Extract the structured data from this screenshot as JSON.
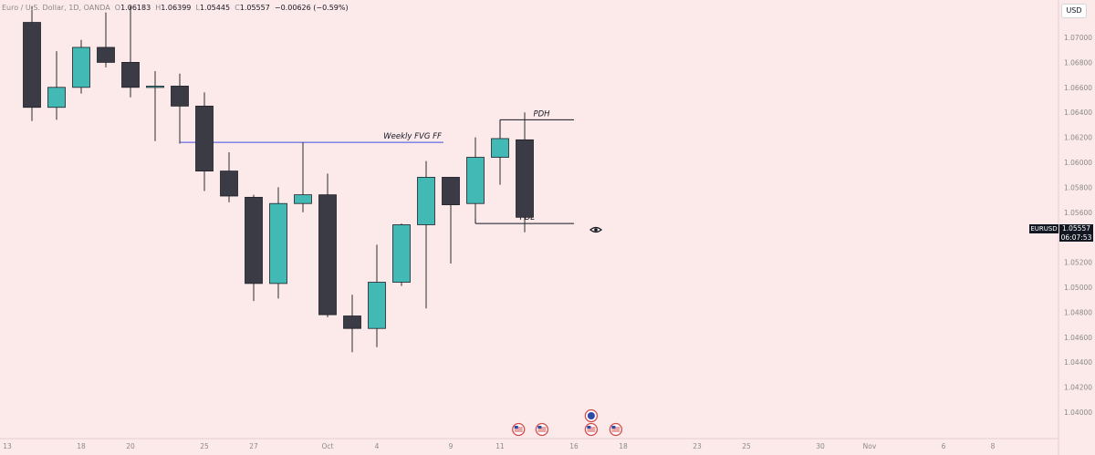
{
  "legend": {
    "title": "Euro / U.S. Dollar, 1D, OANDA",
    "open_label": "O",
    "open": "1.06183",
    "high_label": "H",
    "high": "1.06399",
    "low_label": "L",
    "low": "1.05445",
    "close_label": "C",
    "close": "1.05557",
    "change": "−0.00626 (−0.59%)"
  },
  "currency_button": "USD",
  "symbol_tag": "EURUSD",
  "price_tag": {
    "price": "1.05557",
    "countdown": "06:07:53"
  },
  "colors": {
    "background": "#fce9ea",
    "bull": "#42b9b5",
    "bear": "#3a3b44",
    "wick": "#2a2a2a",
    "fvg_line": "#3d52e0",
    "level_line": "#131722",
    "axis_text": "#8a8a8a"
  },
  "icons": {
    "event_marker": "us-flag-icon",
    "eye": "eye-icon"
  },
  "chart_data": {
    "type": "candlestick",
    "instrument": "EURUSD",
    "timeframe": "1D",
    "ylim": [
      1.04,
      1.072
    ],
    "y_ticks": [
      "1.07000",
      "1.06800",
      "1.06600",
      "1.06400",
      "1.06200",
      "1.06000",
      "1.05800",
      "1.05600",
      "1.05400",
      "1.05200",
      "1.05000",
      "1.04800",
      "1.04600",
      "1.04400",
      "1.04200",
      "1.04000"
    ],
    "x_ticks": [
      {
        "label": "13",
        "i": 0
      },
      {
        "label": "18",
        "i": 3
      },
      {
        "label": "20",
        "i": 5
      },
      {
        "label": "25",
        "i": 8
      },
      {
        "label": "27",
        "i": 10
      },
      {
        "label": "Oct",
        "i": 13
      },
      {
        "label": "4",
        "i": 15
      },
      {
        "label": "9",
        "i": 18
      },
      {
        "label": "11",
        "i": 20
      },
      {
        "label": "16",
        "i": 23
      },
      {
        "label": "18",
        "i": 25
      },
      {
        "label": "23",
        "i": 28
      },
      {
        "label": "25",
        "i": 30
      },
      {
        "label": "30",
        "i": 33
      },
      {
        "label": "Nov",
        "i": 35
      },
      {
        "label": "6",
        "i": 38
      },
      {
        "label": "8",
        "i": 40
      }
    ],
    "candles": [
      {
        "i": 1,
        "o": 1.0712,
        "h": 1.0725,
        "l": 1.0633,
        "c": 1.0644
      },
      {
        "i": 2,
        "o": 1.0644,
        "h": 1.0689,
        "l": 1.0634,
        "c": 1.066
      },
      {
        "i": 3,
        "o": 1.066,
        "h": 1.0698,
        "l": 1.0655,
        "c": 1.0692
      },
      {
        "i": 4,
        "o": 1.0692,
        "h": 1.072,
        "l": 1.0676,
        "c": 1.068
      },
      {
        "i": 5,
        "o": 1.068,
        "h": 1.0725,
        "l": 1.0652,
        "c": 1.066
      },
      {
        "i": 6,
        "o": 1.066,
        "h": 1.0673,
        "l": 1.0617,
        "c": 1.0661
      },
      {
        "i": 7,
        "o": 1.0661,
        "h": 1.0671,
        "l": 1.0615,
        "c": 1.0645
      },
      {
        "i": 8,
        "o": 1.0645,
        "h": 1.0656,
        "l": 1.0577,
        "c": 1.0593
      },
      {
        "i": 9,
        "o": 1.0593,
        "h": 1.0608,
        "l": 1.0568,
        "c": 1.0573
      },
      {
        "i": 10,
        "o": 1.0572,
        "h": 1.0574,
        "l": 1.0489,
        "c": 1.0503
      },
      {
        "i": 11,
        "o": 1.0503,
        "h": 1.058,
        "l": 1.0491,
        "c": 1.0567
      },
      {
        "i": 12,
        "o": 1.0567,
        "h": 1.0616,
        "l": 1.056,
        "c": 1.0574
      },
      {
        "i": 13,
        "o": 1.0574,
        "h": 1.0591,
        "l": 1.0476,
        "c": 1.0478
      },
      {
        "i": 14,
        "o": 1.0477,
        "h": 1.0494,
        "l": 1.0448,
        "c": 1.0467
      },
      {
        "i": 15,
        "o": 1.0467,
        "h": 1.0534,
        "l": 1.0452,
        "c": 1.0504
      },
      {
        "i": 16,
        "o": 1.0504,
        "h": 1.0551,
        "l": 1.0501,
        "c": 1.055
      },
      {
        "i": 17,
        "o": 1.055,
        "h": 1.0601,
        "l": 1.0483,
        "c": 1.0588
      },
      {
        "i": 18,
        "o": 1.0588,
        "h": 1.0588,
        "l": 1.0519,
        "c": 1.0566
      },
      {
        "i": 19,
        "o": 1.0567,
        "h": 1.062,
        "l": 1.0555,
        "c": 1.0604
      },
      {
        "i": 20,
        "o": 1.0604,
        "h": 1.062,
        "l": 1.0582,
        "c": 1.0619
      },
      {
        "i": 21,
        "o": 1.0618,
        "h": 1.064,
        "l": 1.0544,
        "c": 1.0556
      }
    ],
    "levels": [
      {
        "label": "Weekly FVG FF",
        "y": 1.0616,
        "i_start": 7,
        "i_end": 17.7,
        "color": "fvg_line"
      },
      {
        "label": "PDH",
        "y": 1.0634,
        "i_start": 20,
        "i_end": 23,
        "color": "level_line",
        "connector_from": 1.0619
      },
      {
        "label": "PDL",
        "y": 1.0551,
        "i_start": 19,
        "i_end": 23,
        "color": "level_line",
        "connector_from": 1.0566
      }
    ],
    "event_markers": [
      {
        "i": 20.75,
        "row": 0
      },
      {
        "i": 21.7,
        "row": 0
      },
      {
        "i": 23.7,
        "row": 0
      },
      {
        "i": 24.7,
        "row": 0
      },
      {
        "i": 23.7,
        "row": -1
      }
    ]
  }
}
